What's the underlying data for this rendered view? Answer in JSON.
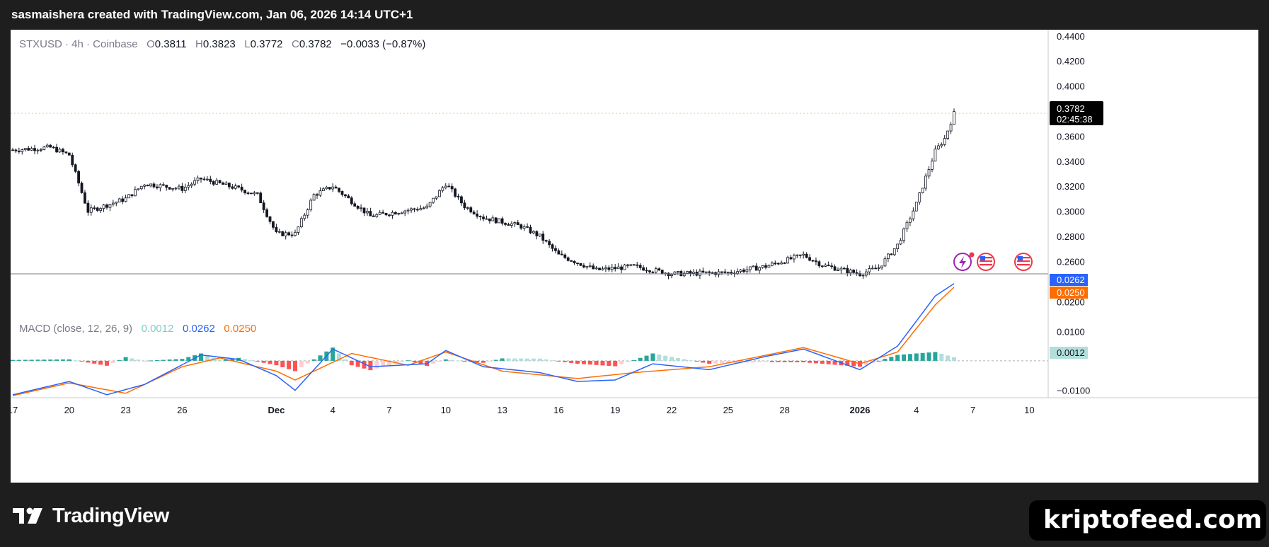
{
  "header": {
    "caption": "sasmaishera created with TradingView.com, Jan 06, 2026 14:14 UTC+1"
  },
  "legend": {
    "symbol": "STXUSD · 4h · Coinbase",
    "open_label": "O",
    "open": "0.3811",
    "high_label": "H",
    "high": "0.3823",
    "low_label": "L",
    "low": "0.3772",
    "close_label": "C",
    "close": "0.3782",
    "change": "−0.0033 (−0.87%)",
    "up_color": "#089981",
    "down_color": "#f23645"
  },
  "macd_legend": {
    "title": "MACD (close, 12, 26, 9)",
    "hist": "0.0012",
    "macd": "0.0262",
    "signal": "0.0250",
    "hist_color": "#82cdc1",
    "macd_color": "#2962ff",
    "signal_color": "#ff6d00"
  },
  "price_badge": {
    "price": "0.3782",
    "countdown": "02:45:38"
  },
  "macd_badges": {
    "macd": "0.0262",
    "signal": "0.0250",
    "hist": "0.0012"
  },
  "price_axis": {
    "ticks": [
      "0.4400",
      "0.4200",
      "0.4000",
      "0.3600",
      "0.3400",
      "0.3200",
      "0.3000",
      "0.2800",
      "0.2600"
    ]
  },
  "macd_axis": {
    "ticks": [
      "0.0200",
      "0.0100",
      "−0.0100"
    ]
  },
  "time_axis": {
    "ticks": [
      "17",
      "20",
      "23",
      "26",
      "Dec",
      "4",
      "7",
      "10",
      "13",
      "16",
      "19",
      "22",
      "25",
      "28",
      "2026",
      "4",
      "7",
      "10"
    ]
  },
  "chart_data": {
    "type": "candlestick",
    "symbol": "STXUSD",
    "interval": "4h",
    "exchange": "Coinbase",
    "price_axis_range": [
      0.25,
      0.445
    ],
    "last_price": 0.3782,
    "ohlc_last": {
      "open": 0.3811,
      "high": 0.3823,
      "low": 0.3772,
      "close": 0.3782,
      "change": -0.0033,
      "change_pct": -0.87
    },
    "close_path": [
      [
        "Nov 17",
        0.349
      ],
      [
        "Nov 19",
        0.351
      ],
      [
        "Nov 20",
        0.345
      ],
      [
        "Nov 21",
        0.3
      ],
      [
        "Nov 23",
        0.31
      ],
      [
        "Nov 24",
        0.322
      ],
      [
        "Nov 26",
        0.318
      ],
      [
        "Nov 27",
        0.326
      ],
      [
        "Nov 29",
        0.318
      ],
      [
        "Nov 30",
        0.313
      ],
      [
        "Dec 1",
        0.282
      ],
      [
        "Dec 2",
        0.282
      ],
      [
        "Dec 3",
        0.313
      ],
      [
        "Dec 4",
        0.32
      ],
      [
        "Dec 5",
        0.308
      ],
      [
        "Dec 6",
        0.296
      ],
      [
        "Dec 8",
        0.301
      ],
      [
        "Dec 9",
        0.303
      ],
      [
        "Dec 10",
        0.322
      ],
      [
        "Dec 11",
        0.304
      ],
      [
        "Dec 12",
        0.295
      ],
      [
        "Dec 14",
        0.288
      ],
      [
        "Dec 15",
        0.28
      ],
      [
        "Dec 16",
        0.265
      ],
      [
        "Dec 18",
        0.253
      ],
      [
        "Dec 20",
        0.256
      ],
      [
        "Dec 22",
        0.25
      ],
      [
        "Dec 25",
        0.251
      ],
      [
        "Dec 27",
        0.256
      ],
      [
        "Dec 29",
        0.265
      ],
      [
        "Dec 30",
        0.257
      ],
      [
        "Jan 1",
        0.25
      ],
      [
        "Jan 2",
        0.255
      ],
      [
        "Jan 3",
        0.273
      ],
      [
        "Jan 4",
        0.306
      ],
      [
        "Jan 5",
        0.348
      ],
      [
        "Jan 5 PM",
        0.358
      ],
      [
        "Jan 6",
        0.378
      ]
    ],
    "macd": {
      "params": "close, 12, 26, 9",
      "range": [
        -0.0125,
        0.0295
      ],
      "macd_path": [
        [
          "Nov 17",
          -0.0115
        ],
        [
          "Nov 20",
          -0.007
        ],
        [
          "Nov 22",
          -0.0115
        ],
        [
          "Nov 24",
          -0.008
        ],
        [
          "Nov 27",
          0.002
        ],
        [
          "Nov 29",
          0.0005
        ],
        [
          "Dec 1",
          -0.005
        ],
        [
          "Dec 2",
          -0.01
        ],
        [
          "Dec 4",
          0.004
        ],
        [
          "Dec 6",
          -0.002
        ],
        [
          "Dec 9",
          -0.001
        ],
        [
          "Dec 10",
          0.0035
        ],
        [
          "Dec 12",
          -0.002
        ],
        [
          "Dec 15",
          -0.004
        ],
        [
          "Dec 17",
          -0.007
        ],
        [
          "Dec 19",
          -0.0065
        ],
        [
          "Dec 21",
          -0.001
        ],
        [
          "Dec 24",
          -0.003
        ],
        [
          "Dec 27",
          0.0015
        ],
        [
          "Dec 29",
          0.004
        ],
        [
          "Jan 1",
          -0.003
        ],
        [
          "Jan 3",
          0.005
        ],
        [
          "Jan 5",
          0.022
        ],
        [
          "Jan 6",
          0.0262
        ]
      ],
      "signal_path": [
        [
          "Nov 17",
          -0.0118
        ],
        [
          "Nov 20",
          -0.0075
        ],
        [
          "Nov 23",
          -0.011
        ],
        [
          "Nov 26",
          -0.002
        ],
        [
          "Nov 28",
          0.001
        ],
        [
          "Dec 1",
          -0.0035
        ],
        [
          "Dec 2",
          -0.0065
        ],
        [
          "Dec 5",
          0.0025
        ],
        [
          "Dec 8",
          -0.0015
        ],
        [
          "Dec 10",
          0.003
        ],
        [
          "Dec 13",
          -0.0035
        ],
        [
          "Dec 17",
          -0.006
        ],
        [
          "Dec 20",
          -0.004
        ],
        [
          "Dec 24",
          -0.002
        ],
        [
          "Dec 29",
          0.0045
        ],
        [
          "Jan 1",
          -0.001
        ],
        [
          "Jan 3",
          0.003
        ],
        [
          "Jan 5",
          0.019
        ],
        [
          "Jan 6",
          0.025
        ]
      ],
      "last": {
        "histogram": 0.0012,
        "macd": 0.0262,
        "signal": 0.025
      }
    }
  },
  "branding": {
    "tv_name": "TradingView",
    "site": "kriptofeed.com"
  }
}
